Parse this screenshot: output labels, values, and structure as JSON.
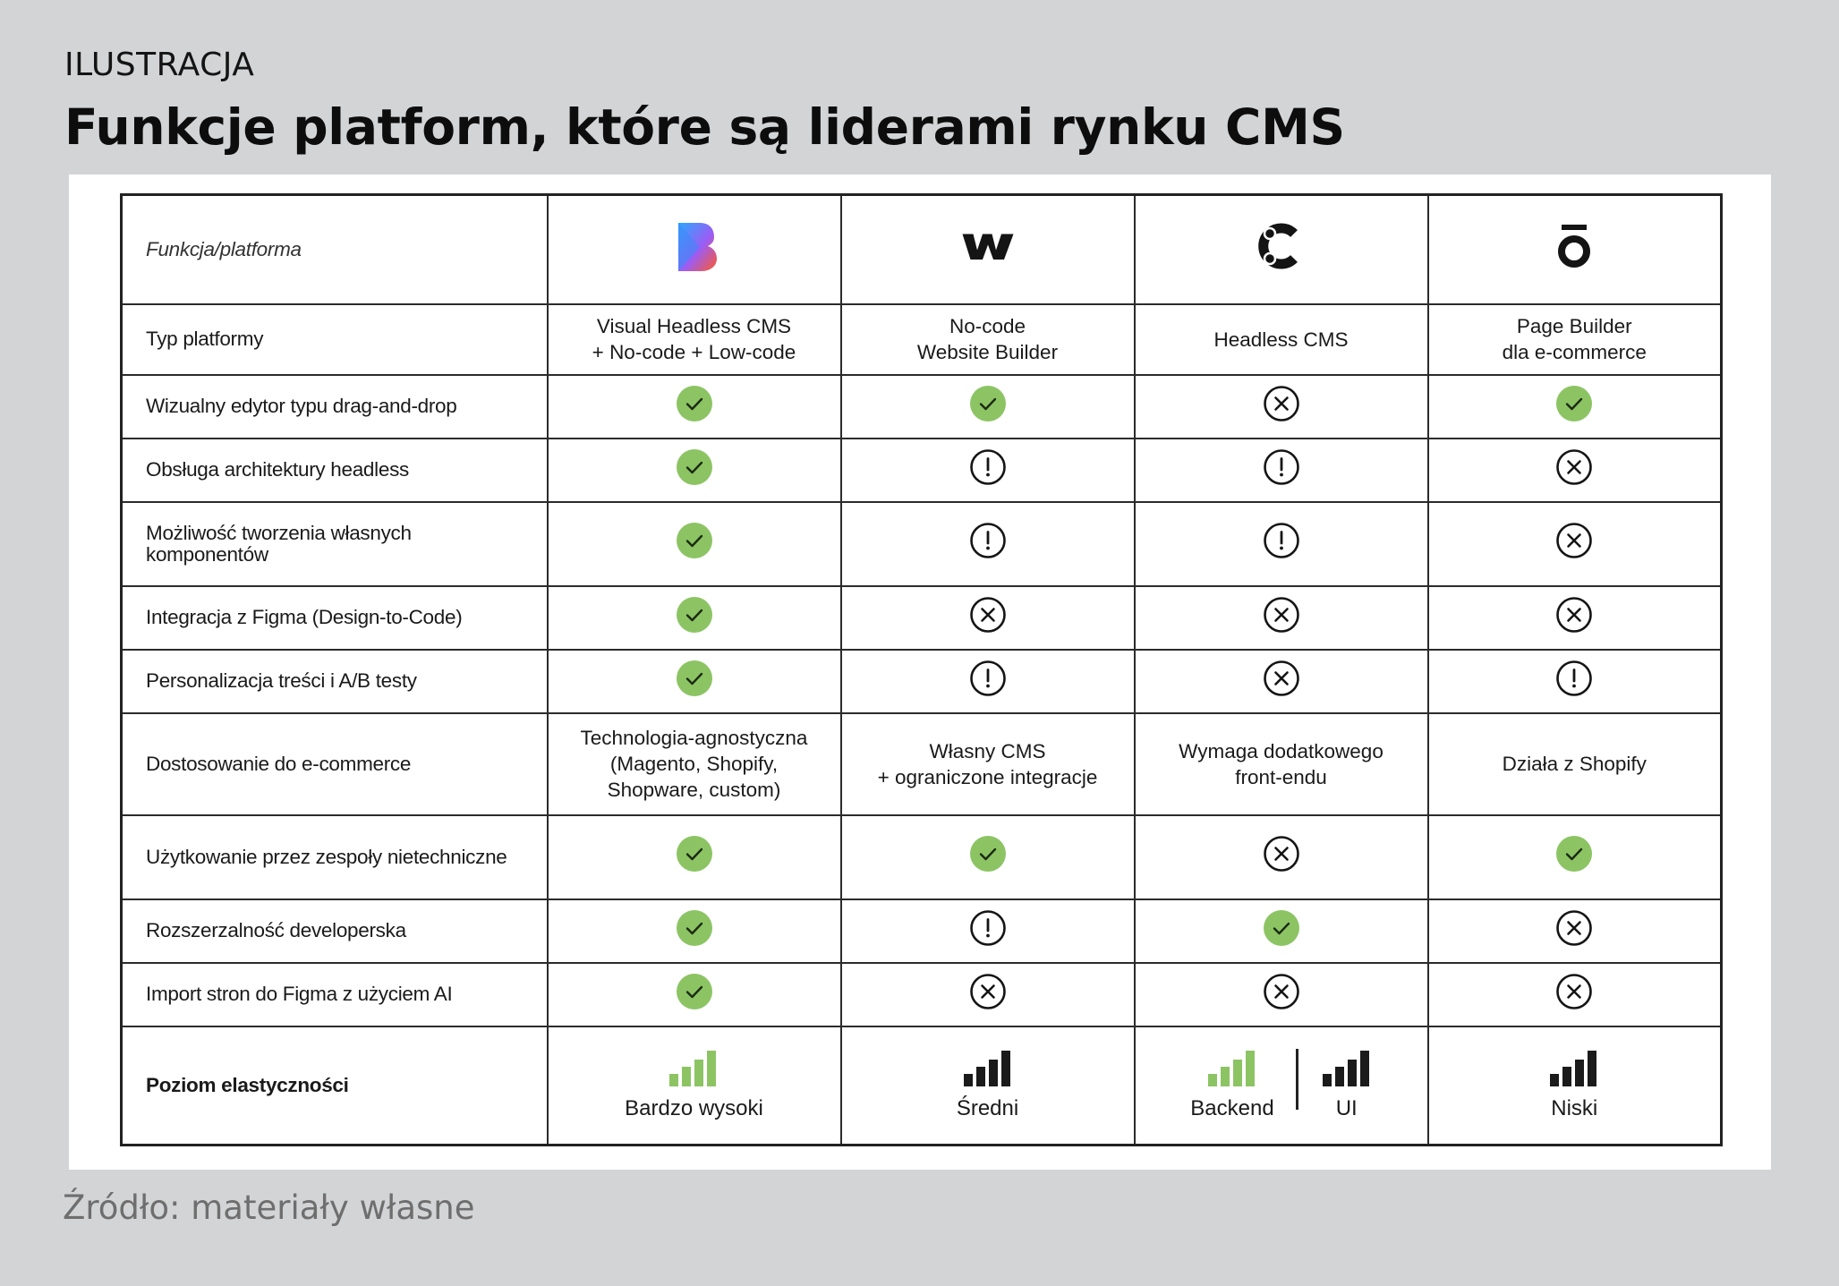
{
  "kicker": "ILUSTRACJA",
  "headline": "Funkcje platform, które są liderami rynku CMS",
  "source": "Źródło: materiały własne",
  "colors": {
    "check_fill": "#8cc464",
    "bar_green": "#8cc464",
    "bar_dark": "#1b1b1b",
    "grid": "#2b2b2b"
  },
  "table": {
    "corner_label": "Funkcja/platforma",
    "platforms": [
      {
        "logo": "bcms-gradient-logo"
      },
      {
        "logo": "webflow-w-logo"
      },
      {
        "logo": "contentful-c-logo"
      },
      {
        "logo": "shogun-o-logo"
      }
    ],
    "rows": [
      {
        "label": "Typ platformy",
        "type": "text",
        "cells": [
          "Visual Headless CMS\n+ No-code + Low-code",
          "No-code\nWebsite Builder",
          "Headless CMS",
          "Page Builder\ndla e-commerce"
        ]
      },
      {
        "label": "Wizualny edytor typu drag-and-drop",
        "type": "status",
        "cells": [
          "check",
          "check",
          "cross",
          "check"
        ]
      },
      {
        "label": "Obsługa architektury headless",
        "type": "status",
        "cells": [
          "check",
          "warning",
          "warning",
          "cross"
        ]
      },
      {
        "label": "Możliwość tworzenia własnych komponentów",
        "type": "status",
        "cells": [
          "check",
          "warning",
          "warning",
          "cross"
        ]
      },
      {
        "label": "Integracja z Figma (Design-to-Code)",
        "type": "status",
        "cells": [
          "check",
          "cross",
          "cross",
          "cross"
        ]
      },
      {
        "label": "Personalizacja treści i A/B testy",
        "type": "status",
        "cells": [
          "check",
          "warning",
          "cross",
          "warning"
        ]
      },
      {
        "label": "Dostosowanie do e-commerce",
        "type": "text",
        "cells": [
          "Technologia-agnostyczna\n(Magento, Shopify,\nShopware, custom)",
          "Własny CMS\n+ ograniczone integracje",
          "Wymaga dodatkowego\nfront-endu",
          "Działa z Shopify"
        ]
      },
      {
        "label": "Użytkowanie przez zespoły nietechniczne",
        "type": "status",
        "cells": [
          "check",
          "check",
          "cross",
          "check"
        ]
      },
      {
        "label": "Rozszerzalność developerska",
        "type": "status",
        "cells": [
          "check",
          "warning",
          "check",
          "cross"
        ]
      },
      {
        "label": "Import stron do Figma z użyciem AI",
        "type": "status",
        "cells": [
          "check",
          "cross",
          "cross",
          "cross"
        ]
      }
    ],
    "flex_row": {
      "label": "Poziom elastyczności",
      "cells": [
        [
          {
            "color": "green",
            "label": "Bardzo wysoki"
          }
        ],
        [
          {
            "color": "dark",
            "label": "Średni"
          }
        ],
        [
          {
            "color": "green",
            "label": "Backend"
          },
          {
            "color": "dark",
            "label": "UI"
          }
        ],
        [
          {
            "color": "dark",
            "label": "Niski"
          }
        ]
      ]
    }
  }
}
